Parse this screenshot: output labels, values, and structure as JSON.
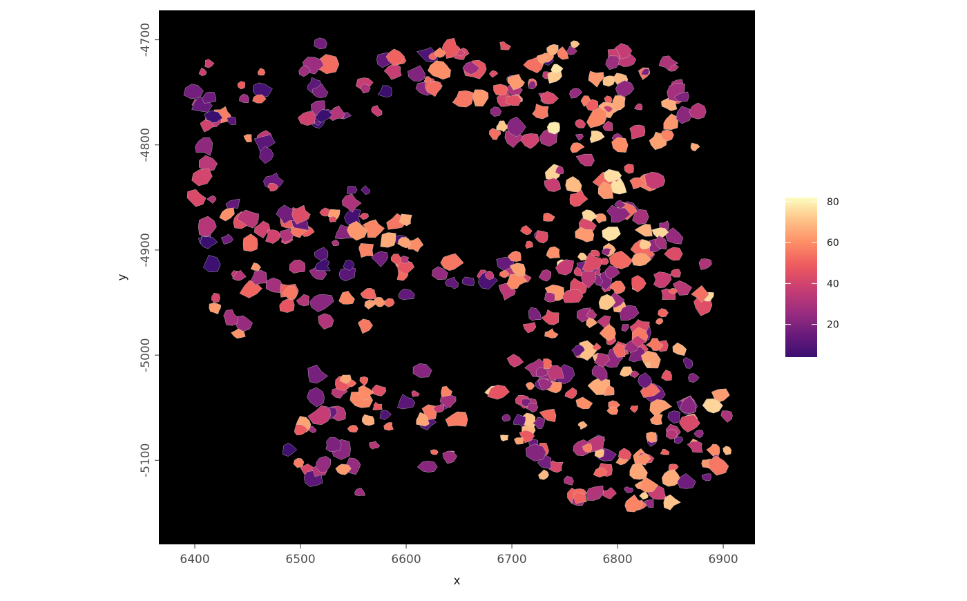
{
  "chart_data": {
    "type": "scatter",
    "title": "",
    "xlabel": "x",
    "ylabel": "y",
    "xlim": [
      6366,
      6930
    ],
    "ylim": [
      -5180,
      -4672
    ],
    "x_ticks": [
      6400,
      6500,
      6600,
      6700,
      6800,
      6900
    ],
    "x_tick_labels": [
      "6400",
      "6500",
      "6600",
      "6700",
      "6800",
      "6900"
    ],
    "y_ticks": [
      -4700,
      -4800,
      -4900,
      -5000,
      -5100
    ],
    "y_tick_labels": [
      "-4700",
      "-4800",
      "-4900",
      "-5000",
      "-5100"
    ],
    "grid": false,
    "panel_background": "#000000",
    "cell_outline_color": "#c8c8c8",
    "colormap": "magma",
    "colormap_stops": [
      "#3b0f70",
      "#6a1b7c",
      "#9c2e7f",
      "#c83e73",
      "#ed5a5f",
      "#fd8c66",
      "#fec287",
      "#fcfdbf"
    ],
    "legend": {
      "position": "right",
      "min": 4,
      "max": 82,
      "ticks": [
        20,
        40,
        60,
        80
      ],
      "tick_labels": [
        "20",
        "40",
        "60",
        "80"
      ]
    }
  }
}
